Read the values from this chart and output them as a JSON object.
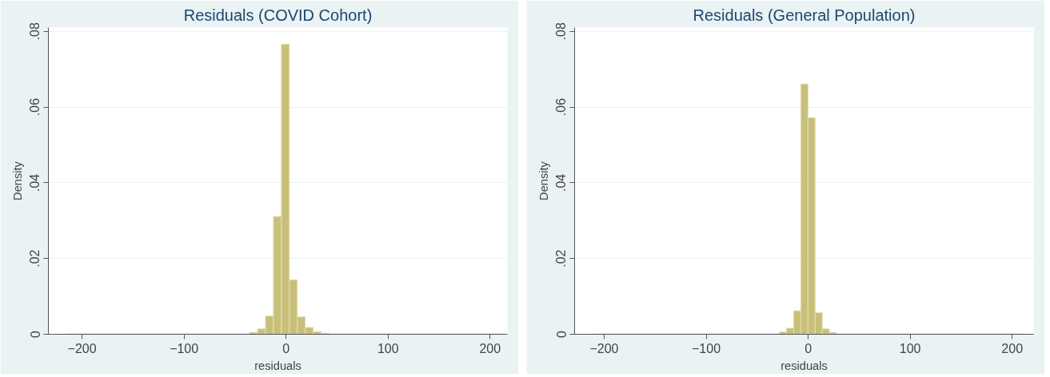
{
  "chart_data": [
    {
      "type": "histogram",
      "title": "Residuals (COVID Cohort)",
      "xlabel": "residuals",
      "ylabel": "Density",
      "color": "#c8c07a",
      "bins": [
        -215.2,
        -207.4,
        -199.6,
        -191.8,
        -184.0,
        -176.2,
        -168.4,
        -160.6,
        -152.8,
        -145.0,
        -137.2,
        -129.4,
        -121.6,
        -113.8,
        -106.0,
        -98.2,
        -90.4,
        -82.6,
        -74.8,
        -67.0,
        -59.2,
        -51.4,
        -43.6,
        -35.8,
        -28.0,
        -20.2,
        -12.4,
        -4.6,
        3.2,
        11.0,
        18.8,
        26.6,
        34.4,
        42.2,
        50.0,
        57.8,
        65.6,
        73.4,
        81.2,
        89.0,
        96.8,
        104.6,
        112.4,
        120.2,
        128.0,
        135.8,
        143.6,
        151.4,
        159.2,
        167.0,
        174.8,
        182.6,
        190.4,
        198.2,
        206.0,
        213.8
      ],
      "values": [
        0.0001,
        0.0001,
        0.0001,
        0.0001,
        0.0001,
        0.0001,
        0.0001,
        0.0001,
        0.0001,
        0.0001,
        0.0001,
        0.0001,
        0.0001,
        0.0001,
        0.0001,
        0.0001,
        0.0001,
        0.0001,
        0.0001,
        0.0001,
        0.0001,
        0.0001,
        0.0001,
        0.0005,
        0.0014,
        0.0048,
        0.0311,
        0.0766,
        0.0144,
        0.0046,
        0.0018,
        0.0007,
        0.0003,
        0.0001,
        0.0001,
        0.0001,
        0.0001,
        0.0001,
        0.0001,
        0.0001,
        0.0001,
        0.0001,
        0.0001,
        0.0001,
        0.0001,
        0.0001,
        0.0001,
        0.0001,
        0.0001,
        0.0001,
        0.0001,
        0.0001,
        0.0001,
        0.0001,
        0.0001
      ],
      "xlim": [
        -233,
        217
      ],
      "xticks": [
        -200,
        -100,
        0,
        100,
        200
      ],
      "ylim": [
        0,
        0.081
      ],
      "yticks": [
        {
          "value": 0,
          "label": "0"
        },
        {
          "value": 0.02,
          "label": ".02"
        },
        {
          "value": 0.04,
          "label": ".04"
        },
        {
          "value": 0.06,
          "label": ".06"
        },
        {
          "value": 0.08,
          "label": ".08"
        }
      ],
      "grid": "y"
    },
    {
      "type": "histogram",
      "title": "Residuals (General Population)",
      "xlabel": "residuals",
      "ylabel": "Density",
      "color": "#c8c07a",
      "bins": [
        -210.2,
        -203.2,
        -196.2,
        -189.2,
        -182.2,
        -175.2,
        -168.2,
        -161.2,
        -154.2,
        -147.2,
        -140.2,
        -133.2,
        -126.2,
        -119.2,
        -112.2,
        -105.2,
        -98.2,
        -91.2,
        -84.2,
        -77.2,
        -70.2,
        -63.2,
        -56.2,
        -49.2,
        -42.2,
        -35.2,
        -28.2,
        -21.2,
        -14.2,
        -7.2,
        -0.2,
        6.8,
        13.8,
        20.8,
        27.8,
        34.8,
        41.8,
        48.8,
        55.8,
        62.8,
        69.8,
        76.8,
        83.8,
        90.8,
        97.8,
        104.8,
        111.8,
        118.8,
        125.8,
        132.8,
        139.8,
        146.8,
        153.8,
        160.8,
        167.8,
        174.8,
        181.8,
        188.8,
        195.8,
        202.8,
        209.8
      ],
      "values": [
        0.0001,
        0.0001,
        0.0001,
        0.0001,
        0.0001,
        0.0001,
        0.0001,
        0.0001,
        0.0001,
        0.0001,
        0.0001,
        0.0001,
        0.0001,
        0.0001,
        0.0001,
        0.0001,
        0.0001,
        0.0001,
        0.0001,
        0.0001,
        0.0001,
        0.0001,
        0.0001,
        0.0001,
        0.0001,
        0.0001,
        0.0006,
        0.0016,
        0.0062,
        0.0661,
        0.0572,
        0.0057,
        0.0014,
        0.0005,
        0.0001,
        0.0001,
        0.0001,
        0.0001,
        0.0001,
        0.0001,
        0.0001,
        0.0001,
        0.0001,
        0.0001,
        0.0001,
        0.0001,
        0.0001,
        0.0001,
        0.0001,
        0.0001,
        0.0001,
        0.0001,
        0.0001,
        0.0001,
        0.0001,
        0.0001,
        0.0001,
        0.0001,
        0.0001,
        0.0001
      ],
      "xlim": [
        -229,
        221
      ],
      "xticks": [
        -200,
        -100,
        0,
        100,
        200
      ],
      "ylim": [
        0,
        0.081
      ],
      "yticks": [
        {
          "value": 0,
          "label": "0"
        },
        {
          "value": 0.02,
          "label": ".02"
        },
        {
          "value": 0.04,
          "label": ".04"
        },
        {
          "value": 0.06,
          "label": ".06"
        },
        {
          "value": 0.08,
          "label": ".08"
        }
      ],
      "grid": "y"
    }
  ]
}
